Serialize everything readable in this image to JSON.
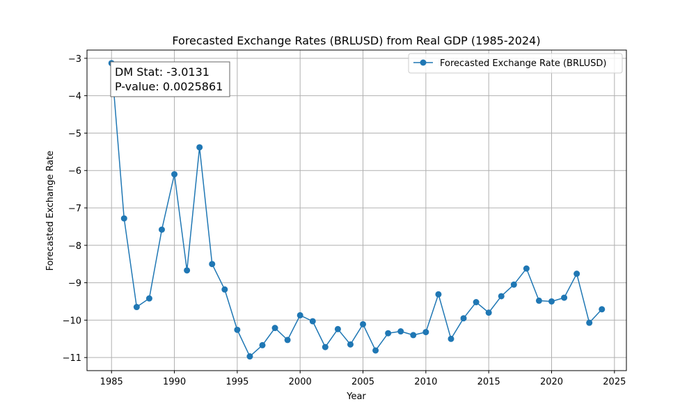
{
  "chart_data": {
    "type": "line",
    "title": "Forecasted Exchange Rates (BRLUSD) from Real GDP (1985-2024)",
    "xlabel": "Year",
    "ylabel": "Forecasted Exchange Rate",
    "xlim": [
      1983.05,
      2025.95
    ],
    "ylim": [
      -11.35,
      -2.78
    ],
    "x_ticks": [
      1985,
      1990,
      1995,
      2000,
      2005,
      2010,
      2015,
      2020,
      2025
    ],
    "y_ticks": [
      -11,
      -10,
      -9,
      -8,
      -7,
      -6,
      -5,
      -4,
      -3
    ],
    "grid": true,
    "legend_position": "top-right",
    "series": [
      {
        "name": "Forecasted Exchange Rate (BRLUSD)",
        "color": "#1f77b4",
        "marker": "circle",
        "x": [
          1985,
          1986,
          1987,
          1988,
          1989,
          1990,
          1991,
          1992,
          1993,
          1994,
          1995,
          1996,
          1997,
          1998,
          1999,
          2000,
          2001,
          2002,
          2003,
          2004,
          2005,
          2006,
          2007,
          2008,
          2009,
          2010,
          2011,
          2012,
          2013,
          2014,
          2015,
          2016,
          2017,
          2018,
          2019,
          2020,
          2021,
          2022,
          2023,
          2024
        ],
        "values": [
          -3.13,
          -7.28,
          -9.65,
          -9.42,
          -7.58,
          -6.1,
          -8.67,
          -5.38,
          -8.5,
          -9.18,
          -10.26,
          -10.97,
          -10.67,
          -10.21,
          -10.53,
          -9.87,
          -10.03,
          -10.72,
          -10.24,
          -10.65,
          -10.11,
          -10.81,
          -10.35,
          -10.3,
          -10.4,
          -10.32,
          -9.31,
          -10.5,
          -9.95,
          -9.52,
          -9.8,
          -9.36,
          -9.05,
          -8.62,
          -9.48,
          -9.5,
          -9.4,
          -8.76,
          -10.07,
          -9.71
        ]
      }
    ],
    "annotation": {
      "line1": "DM Stat: -3.0131",
      "line2": "P-value: 0.0025861"
    }
  }
}
